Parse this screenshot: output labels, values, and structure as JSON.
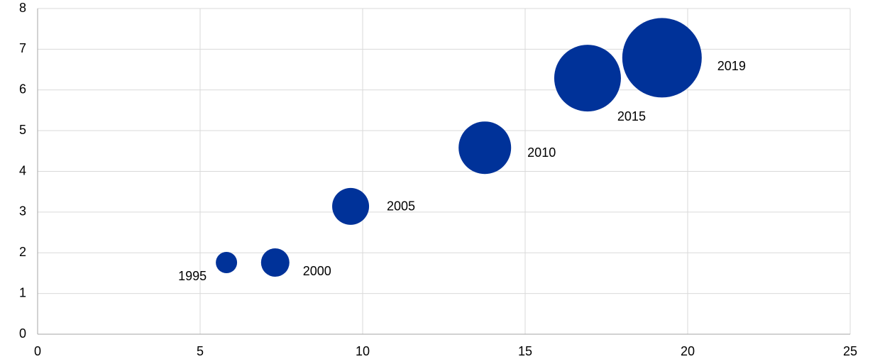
{
  "chart_data": {
    "type": "bubble",
    "x": [
      5.81,
      7.31,
      9.63,
      13.76,
      16.92,
      19.21
    ],
    "values": [
      1.76,
      1.76,
      3.14,
      4.58,
      6.29,
      6.79
    ],
    "sizes": [
      2.25,
      4,
      6.76,
      13.69,
      22.09,
      31.36
    ],
    "labels": [
      "1995",
      "2000",
      "2005",
      "2010",
      "2015",
      "2019"
    ],
    "color": "#003299",
    "xlim": [
      0,
      25
    ],
    "xticks": [
      0,
      5,
      10,
      15,
      20,
      25
    ],
    "ylim": [
      0,
      8
    ],
    "yticks": [
      0,
      1,
      2,
      3,
      4,
      5,
      6,
      7,
      8
    ],
    "grid": true
  }
}
